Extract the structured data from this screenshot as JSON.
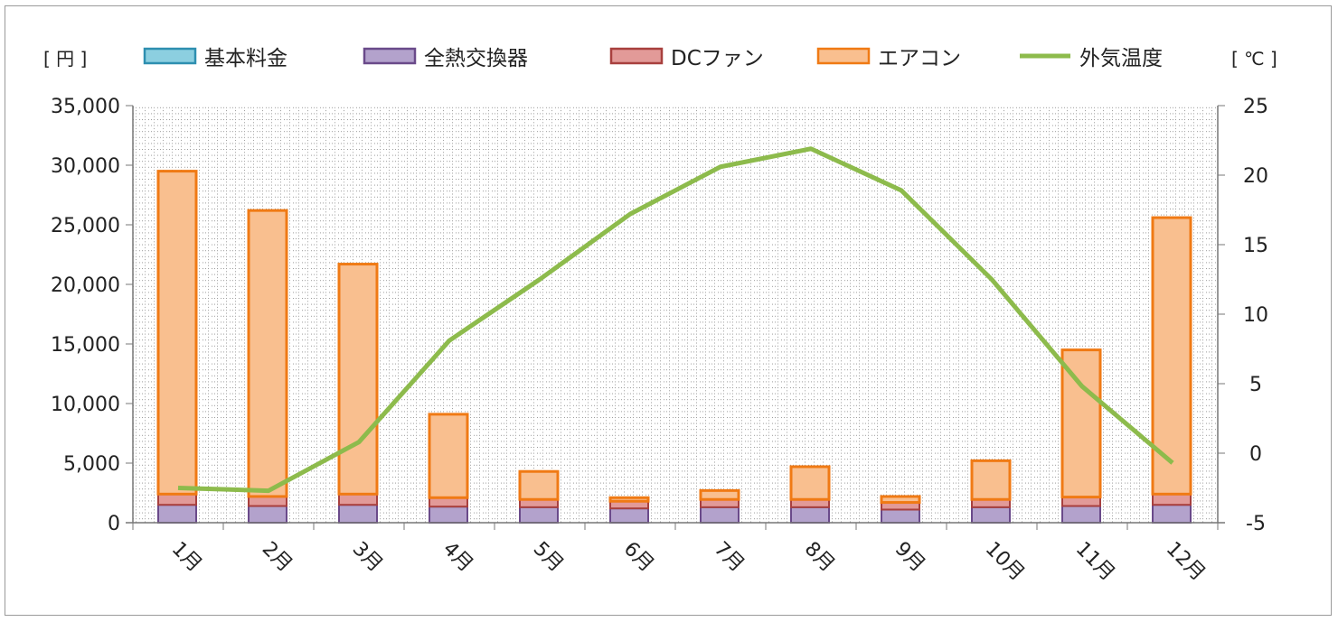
{
  "chart_data": {
    "type": "bar",
    "stacked": true,
    "categories": [
      "1月",
      "2月",
      "3月",
      "4月",
      "5月",
      "6月",
      "7月",
      "8月",
      "9月",
      "10月",
      "11月",
      "12月"
    ],
    "left_unit": "[ 円 ]",
    "right_unit": "[ ℃ ]",
    "ylim": [
      0,
      35000
    ],
    "yticks": [
      "0",
      "5,000",
      "10,000",
      "15,000",
      "20,000",
      "25,000",
      "30,000",
      "35,000"
    ],
    "y2lim": [
      -5,
      25
    ],
    "y2ticks": [
      "-5",
      "0",
      "5",
      "10",
      "15",
      "20",
      "25"
    ],
    "grid": "dotted minor grid",
    "legend_position": "top",
    "series": [
      {
        "name": "基本料金",
        "axis": "left",
        "kind": "bar",
        "fill": "#8ccfe0",
        "stroke": "#2e8fb0",
        "values": [
          0,
          0,
          0,
          0,
          0,
          0,
          0,
          0,
          0,
          0,
          0,
          0
        ]
      },
      {
        "name": "全熱交換器",
        "axis": "left",
        "kind": "bar",
        "fill": "#b3a2cc",
        "stroke": "#6a4a8a",
        "values": [
          1500,
          1400,
          1500,
          1350,
          1300,
          1200,
          1300,
          1300,
          1100,
          1300,
          1400,
          1500
        ]
      },
      {
        "name": "DCファン",
        "axis": "left",
        "kind": "bar",
        "fill": "#e29a98",
        "stroke": "#a8403e",
        "values": [
          900,
          800,
          900,
          750,
          650,
          600,
          650,
          650,
          600,
          650,
          750,
          900
        ]
      },
      {
        "name": "エアコン",
        "axis": "left",
        "kind": "bar",
        "fill": "#f9bf8f",
        "stroke": "#f07a14",
        "values": [
          27100,
          24000,
          19300,
          7000,
          2350,
          300,
          750,
          2750,
          500,
          3250,
          12350,
          23200
        ]
      },
      {
        "name": "外気温度",
        "axis": "right",
        "kind": "line",
        "stroke": "#8dbb4c",
        "values": [
          -2.5,
          -2.7,
          0.8,
          8.1,
          12.5,
          17.2,
          20.6,
          21.9,
          18.9,
          12.5,
          4.8,
          -0.7
        ]
      }
    ]
  }
}
